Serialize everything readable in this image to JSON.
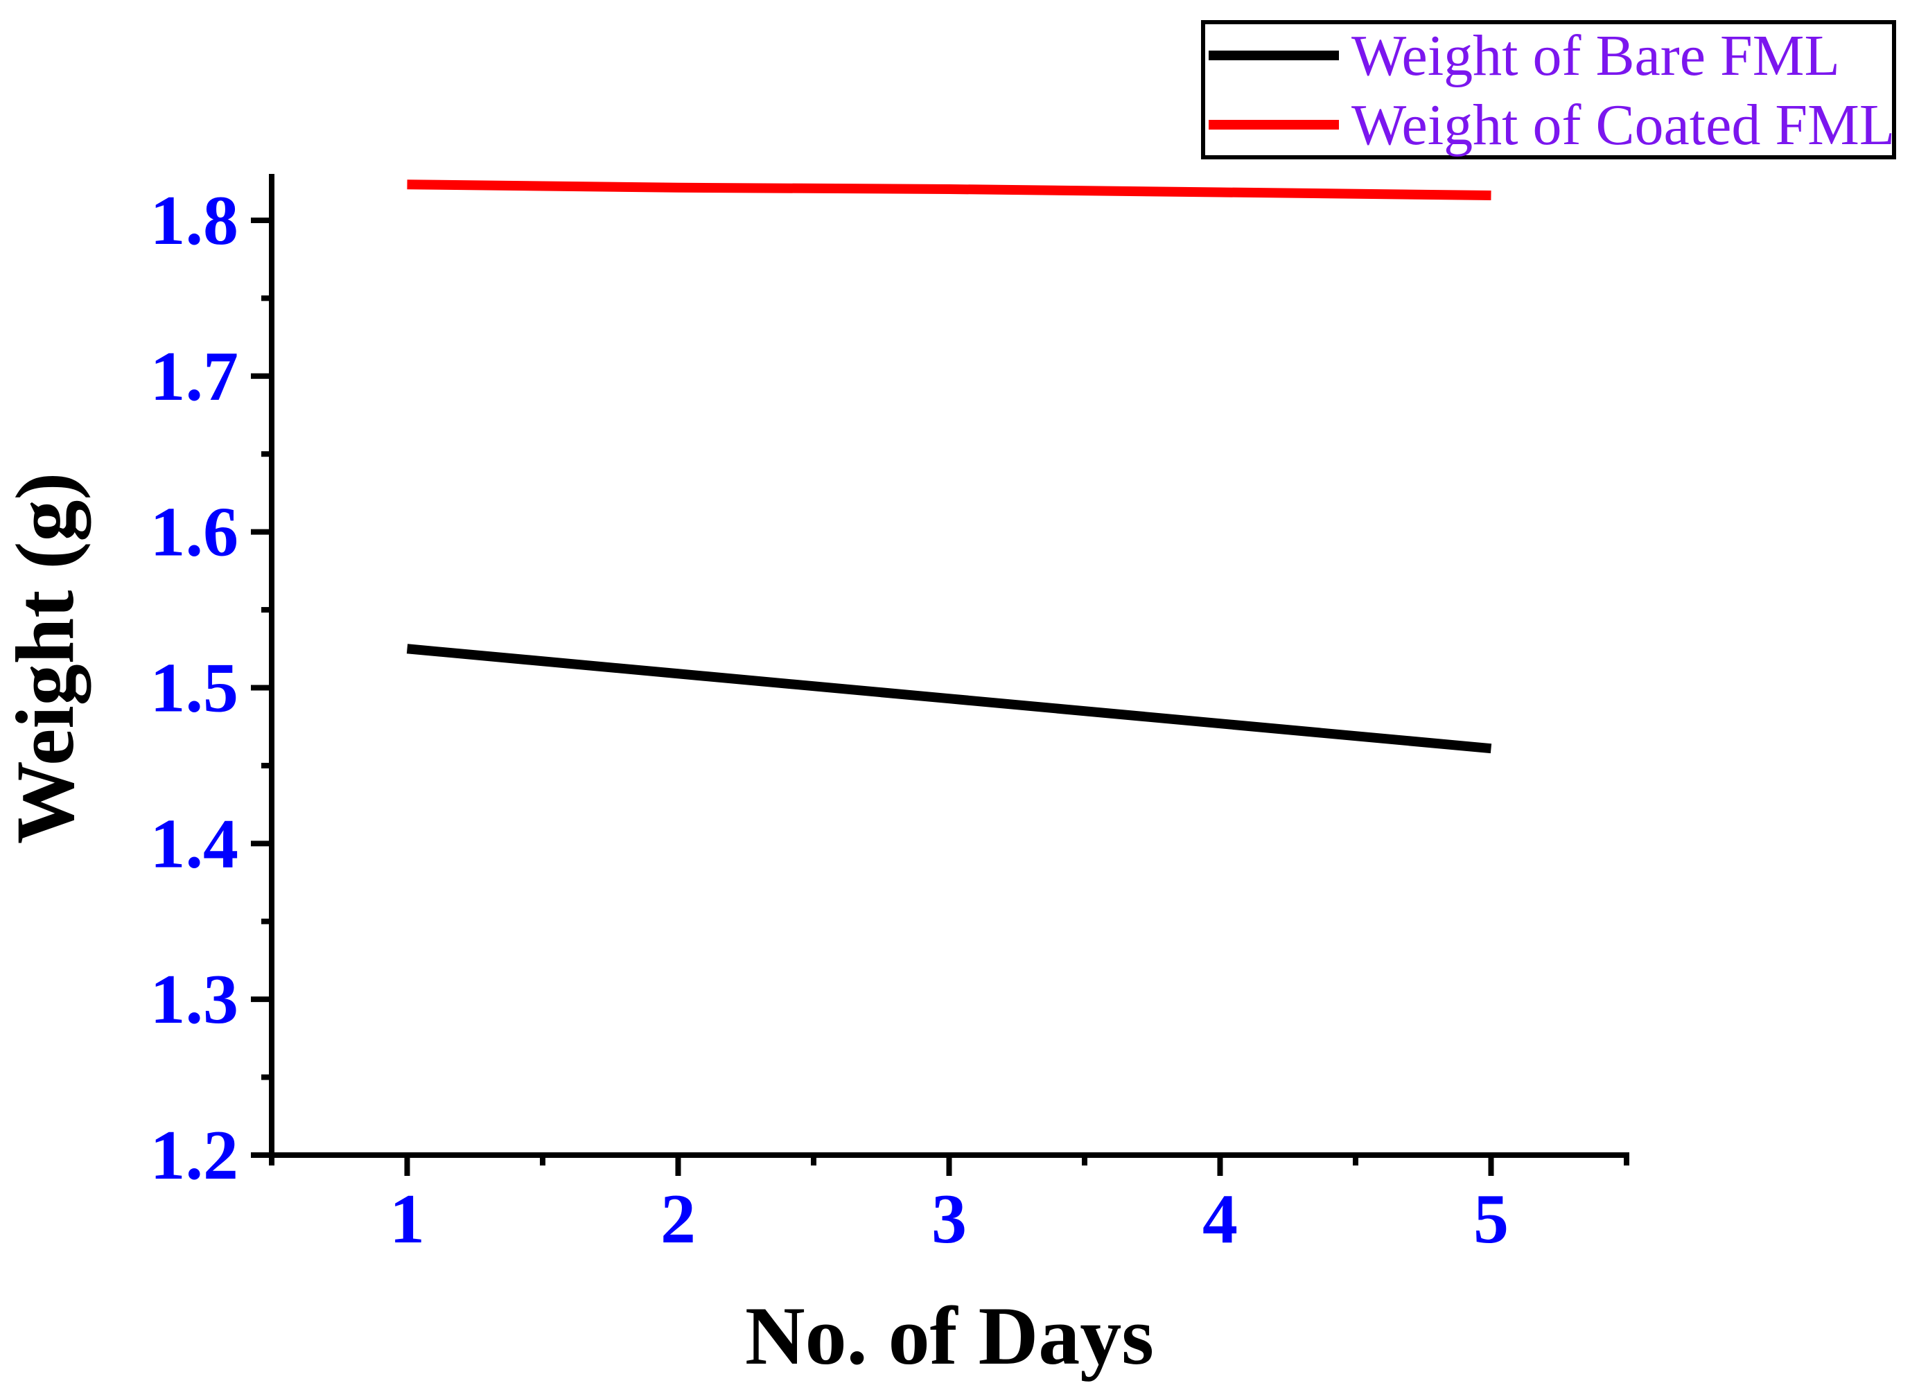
{
  "chart_data": {
    "type": "line",
    "title": "",
    "xlabel": "No. of Days",
    "ylabel": "Weight (g)",
    "x": [
      1,
      2,
      3,
      4,
      5
    ],
    "series": [
      {
        "name": "Weight of Bare FML",
        "color": "#000000",
        "values": [
          1.525,
          1.509,
          1.493,
          1.477,
          1.461
        ]
      },
      {
        "name": "Weight of Coated FML",
        "color": "#FF0000",
        "values": [
          1.823,
          1.821,
          1.82,
          1.818,
          1.816
        ]
      }
    ],
    "xlim": [
      0.5,
      5.5
    ],
    "ylim": [
      1.2,
      1.828
    ],
    "x_tick_values": [
      1,
      2,
      3,
      4,
      5
    ],
    "x_tick_labels": [
      "1",
      "2",
      "3",
      "4",
      "5"
    ],
    "x_minor_tick_values": [
      0.5,
      1.5,
      2.5,
      3.5,
      4.5,
      5.5
    ],
    "y_tick_values": [
      1.2,
      1.3,
      1.4,
      1.5,
      1.6,
      1.7,
      1.8
    ],
    "y_tick_labels": [
      "1.2",
      "1.3",
      "1.4",
      "1.5",
      "1.6",
      "1.7",
      "1.8"
    ],
    "y_minor_tick_values": [
      1.25,
      1.35,
      1.45,
      1.55,
      1.65,
      1.75
    ],
    "grid": false,
    "legend_position": "top-right"
  },
  "styles": {
    "tick_label_color": "#0000FF",
    "legend_text_color": "#7B16EE",
    "axis_color": "#000000",
    "background_color": "#FFFFFF"
  }
}
